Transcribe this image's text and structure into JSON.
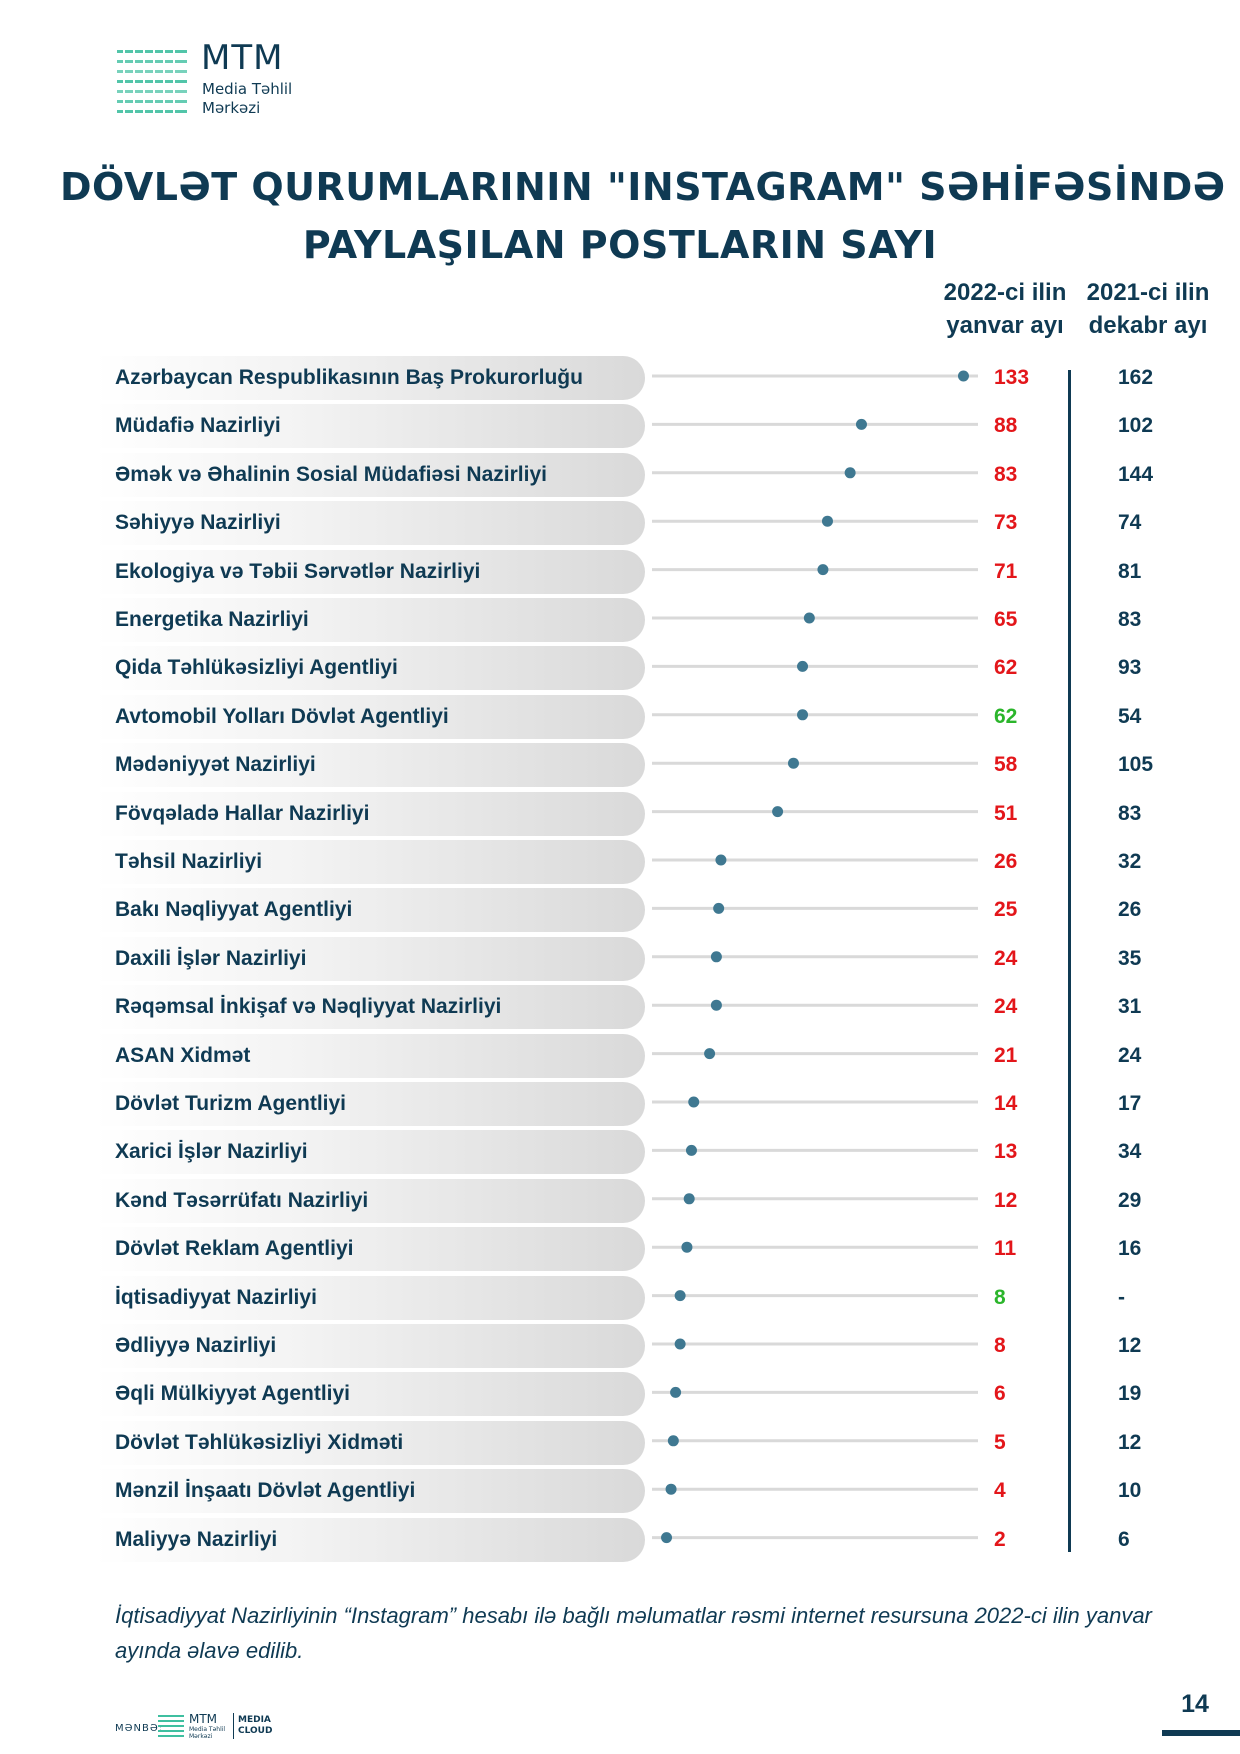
{
  "logo": {
    "name": "MTM",
    "subtitle_line1": "Media Təhlil",
    "subtitle_line2": "Mərkəzi"
  },
  "title": {
    "line1": "DÖVLƏT QURUMLARININ \"INSTAGRAM\" SƏHİFƏSİNDƏ",
    "line2": "PAYLAŞILAN POSTLARIN SAYI"
  },
  "columns": {
    "current_line1": "2022-ci ilin",
    "current_line2": "yanvar ayı",
    "previous_line1": "2021-ci ilin",
    "previous_line2": "dekabr ayı"
  },
  "colors": {
    "navy": "#0f3a53",
    "decrease": "#e3161a",
    "increase": "#2bb52b",
    "line_start": "#3fbfa0",
    "line_end": "#3f7891",
    "track": "#d9d9d9"
  },
  "chart_data": {
    "type": "lollipop",
    "title": "DÖVLƏT QURUMLARININ \"INSTAGRAM\" SƏHİFƏSİNDƏ PAYLAŞILAN POSTLARIN SAYI",
    "xlim": [
      0,
      135
    ],
    "series": [
      {
        "name": "2022-ci ilin yanvar ayı"
      },
      {
        "name": "2021-ci ilin dekabr ayı"
      }
    ],
    "rows": [
      {
        "label": "Azərbaycan Respublikasının Baş Prokurorluğu",
        "jan2022": 133,
        "dec2021": "162",
        "trend": "decrease"
      },
      {
        "label": "Müdafiə Nazirliyi",
        "jan2022": 88,
        "dec2021": "102",
        "trend": "decrease"
      },
      {
        "label": "Əmək və Əhalinin Sosial Müdafiəsi Nazirliyi",
        "jan2022": 83,
        "dec2021": "144",
        "trend": "decrease"
      },
      {
        "label": "Səhiyyə Nazirliyi",
        "jan2022": 73,
        "dec2021": "74",
        "trend": "decrease"
      },
      {
        "label": "Ekologiya və Təbii Sərvətlər Nazirliyi",
        "jan2022": 71,
        "dec2021": "81",
        "trend": "decrease"
      },
      {
        "label": "Energetika Nazirliyi",
        "jan2022": 65,
        "dec2021": "83",
        "trend": "decrease"
      },
      {
        "label": "Qida Təhlükəsizliyi Agentliyi",
        "jan2022": 62,
        "dec2021": "93",
        "trend": "decrease"
      },
      {
        "label": "Avtomobil Yolları Dövlət Agentliyi",
        "jan2022": 62,
        "dec2021": "54",
        "trend": "increase"
      },
      {
        "label": "Mədəniyyət Nazirliyi",
        "jan2022": 58,
        "dec2021": "105",
        "trend": "decrease"
      },
      {
        "label": "Fövqəladə Hallar Nazirliyi",
        "jan2022": 51,
        "dec2021": "83",
        "trend": "decrease"
      },
      {
        "label": "Təhsil Nazirliyi",
        "jan2022": 26,
        "dec2021": "32",
        "trend": "decrease"
      },
      {
        "label": "Bakı Nəqliyyat Agentliyi",
        "jan2022": 25,
        "dec2021": "26",
        "trend": "decrease"
      },
      {
        "label": "Daxili İşlər Nazirliyi",
        "jan2022": 24,
        "dec2021": "35",
        "trend": "decrease"
      },
      {
        "label": "Rəqəmsal İnkişaf və Nəqliyyat Nazirliyi",
        "jan2022": 24,
        "dec2021": "31",
        "trend": "decrease"
      },
      {
        "label": "ASAN Xidmət",
        "jan2022": 21,
        "dec2021": "24",
        "trend": "decrease"
      },
      {
        "label": "Dövlət Turizm Agentliyi",
        "jan2022": 14,
        "dec2021": "17",
        "trend": "decrease"
      },
      {
        "label": "Xarici İşlər Nazirliyi",
        "jan2022": 13,
        "dec2021": "34",
        "trend": "decrease"
      },
      {
        "label": "Kənd Təsərrüfatı Nazirliyi",
        "jan2022": 12,
        "dec2021": "29",
        "trend": "decrease"
      },
      {
        "label": "Dövlət Reklam Agentliyi",
        "jan2022": 11,
        "dec2021": "16",
        "trend": "decrease"
      },
      {
        "label": "İqtisadiyyat Nazirliyi",
        "jan2022": 8,
        "dec2021": "-",
        "trend": "increase"
      },
      {
        "label": "Ədliyyə Nazirliyi",
        "jan2022": 8,
        "dec2021": "12",
        "trend": "decrease"
      },
      {
        "label": "Əqli Mülkiyyət Agentliyi",
        "jan2022": 6,
        "dec2021": "19",
        "trend": "decrease"
      },
      {
        "label": "Dövlət Təhlükəsizliyi Xidməti",
        "jan2022": 5,
        "dec2021": "12",
        "trend": "decrease"
      },
      {
        "label": "Mənzil İnşaatı Dövlət Agentliyi",
        "jan2022": 4,
        "dec2021": "10",
        "trend": "decrease"
      },
      {
        "label": "Maliyyə Nazirliyi",
        "jan2022": 2,
        "dec2021": "6",
        "trend": "decrease"
      }
    ]
  },
  "footnote": "İqtisadiyyat Nazirliyinin “Instagram” hesabı ilə bağlı məlumatlar rəsmi internet resursuna 2022-ci ilin yanvar ayında əlavə edilib.",
  "source": {
    "label": "MƏNBƏ:",
    "mtm": "MTM",
    "mtm_sub_line1": "Media Təhlil",
    "mtm_sub_line2": "Mərkəzi",
    "cloud_line1": "MEDIA",
    "cloud_line2": "CLOUD"
  },
  "page_number": "14"
}
